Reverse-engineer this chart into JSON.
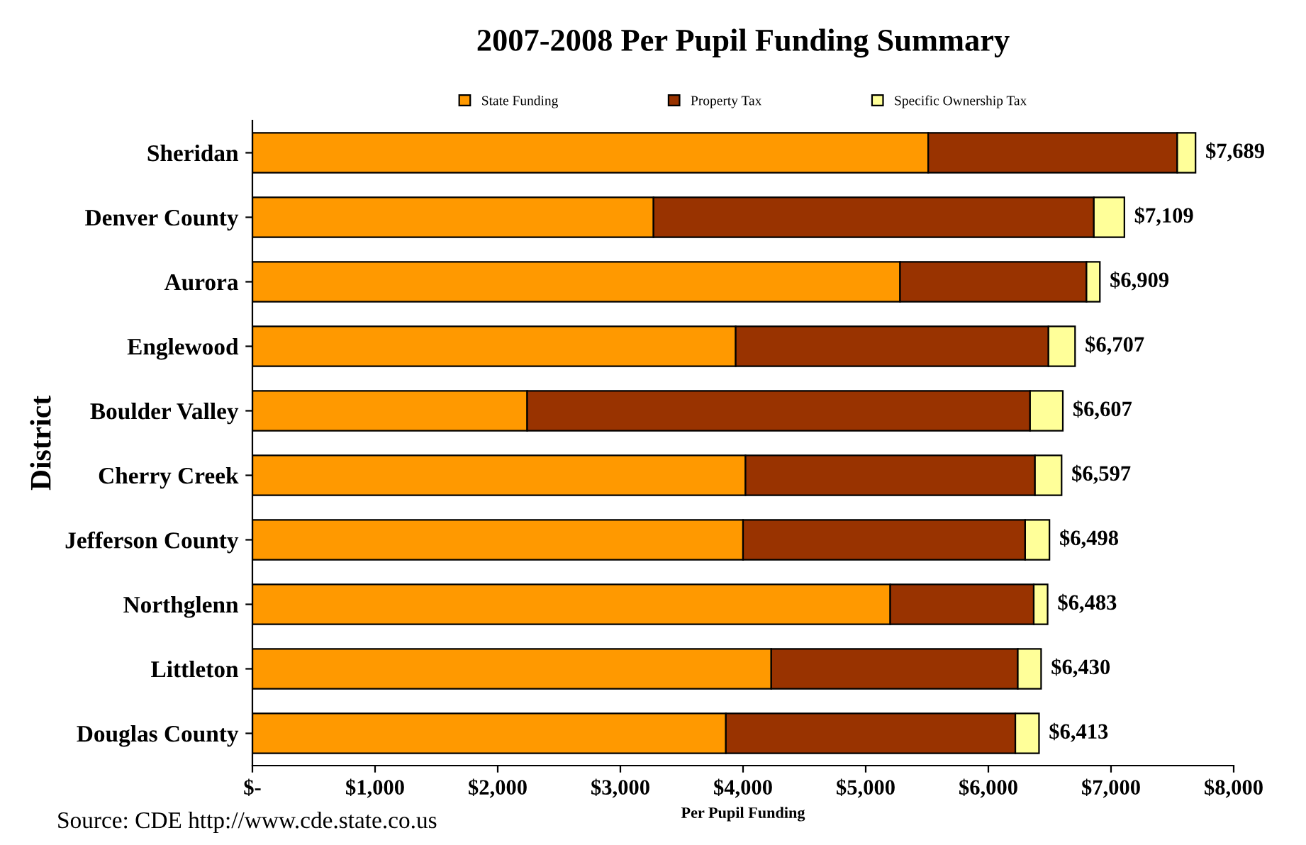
{
  "chart_data": {
    "type": "bar",
    "orientation": "horizontal",
    "stacked": true,
    "title": "2007-2008 Per Pupil Funding Summary",
    "xlabel": "Per Pupil Funding",
    "ylabel": "District",
    "categories": [
      "Sheridan",
      "Denver County",
      "Aurora",
      "Englewood",
      "Boulder Valley",
      "Cherry Creek",
      "Jefferson County",
      "Northglenn",
      "Littleton",
      "Douglas County"
    ],
    "series": [
      {
        "name": "State Funding",
        "color": "#ff9900",
        "values": [
          5510,
          3270,
          5280,
          3940,
          2240,
          4020,
          4000,
          5200,
          4230,
          3860
        ]
      },
      {
        "name": "Property Tax",
        "color": "#993300",
        "values": [
          2030,
          3590,
          1520,
          2550,
          4100,
          2360,
          2300,
          1170,
          2010,
          2360
        ]
      },
      {
        "name": "Specific Ownership Tax",
        "color": "#ffff99",
        "values": [
          149,
          249,
          109,
          217,
          267,
          217,
          198,
          113,
          190,
          193
        ]
      }
    ],
    "totals": [
      "$7,689",
      "$7,109",
      "$6,909",
      "$6,707",
      "$6,607",
      "$6,597",
      "$6,498",
      "$6,483",
      "$6,430",
      "$6,413"
    ],
    "xlim": [
      0,
      8000
    ],
    "xticks": [
      {
        "value": 0,
        "label": "$-"
      },
      {
        "value": 1000,
        "label": "$1,000"
      },
      {
        "value": 2000,
        "label": "$2,000"
      },
      {
        "value": 3000,
        "label": "$3,000"
      },
      {
        "value": 4000,
        "label": "$4,000"
      },
      {
        "value": 5000,
        "label": "$5,000"
      },
      {
        "value": 6000,
        "label": "$6,000"
      },
      {
        "value": 7000,
        "label": "$7,000"
      },
      {
        "value": 8000,
        "label": "$8,000"
      }
    ],
    "grid": false,
    "legend": "top",
    "annotations": [
      "Source: CDE http://www.cde.state.co.us"
    ]
  }
}
